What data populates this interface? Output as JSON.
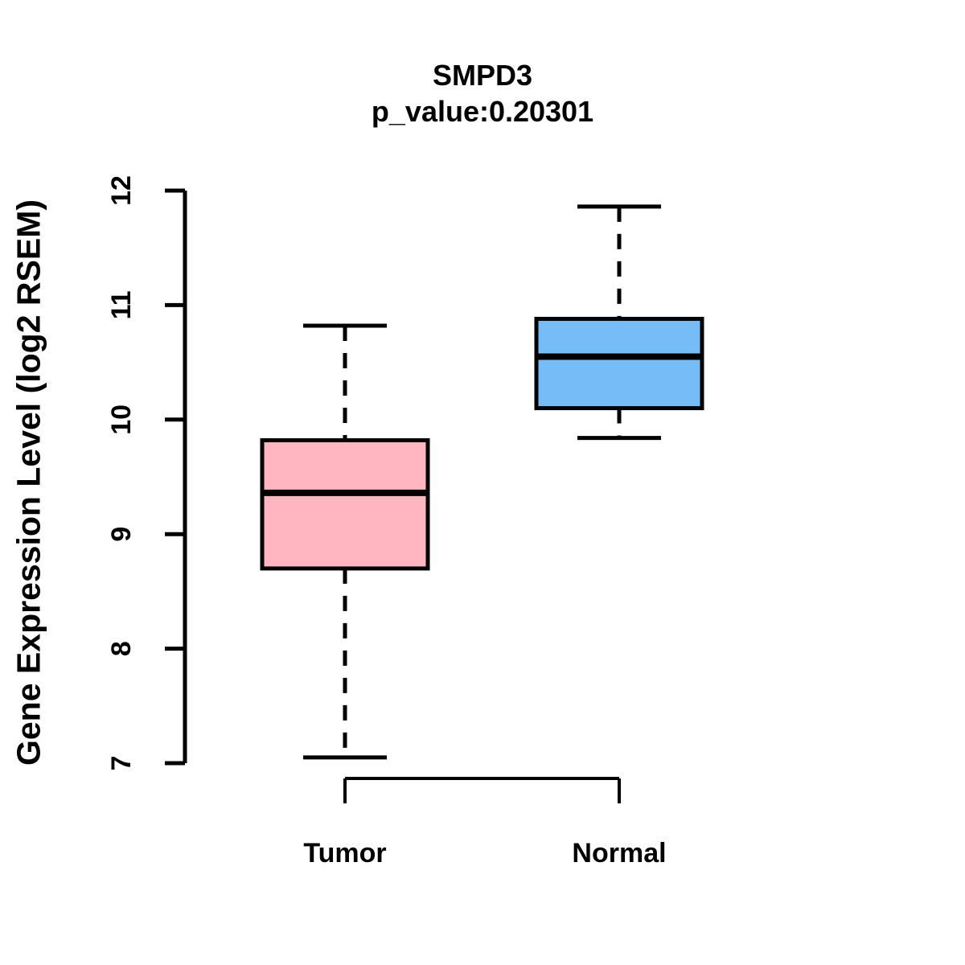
{
  "chart_data": {
    "type": "boxplot",
    "title": "SMPD3",
    "subtitle": "p_value:0.20301",
    "p_value": 0.20301,
    "ylabel": "Gene Expression Level (log2 RSEM)",
    "xlabel": "",
    "ylim": [
      7,
      12
    ],
    "yticks": [
      7,
      8,
      9,
      10,
      11,
      12
    ],
    "categories": [
      "Tumor",
      "Normal"
    ],
    "grid": false,
    "legend": "none",
    "stroke": "#000000",
    "background": "#FFFFFF",
    "series": [
      {
        "name": "Tumor",
        "fill": "#FFB6C1",
        "lower_whisker": 7.05,
        "q1": 8.7,
        "median": 9.36,
        "q3": 9.82,
        "upper_whisker": 10.82
      },
      {
        "name": "Normal",
        "fill": "#75BDF7",
        "lower_whisker": 9.84,
        "q1": 10.1,
        "median": 10.55,
        "q3": 10.88,
        "upper_whisker": 11.86
      }
    ]
  }
}
